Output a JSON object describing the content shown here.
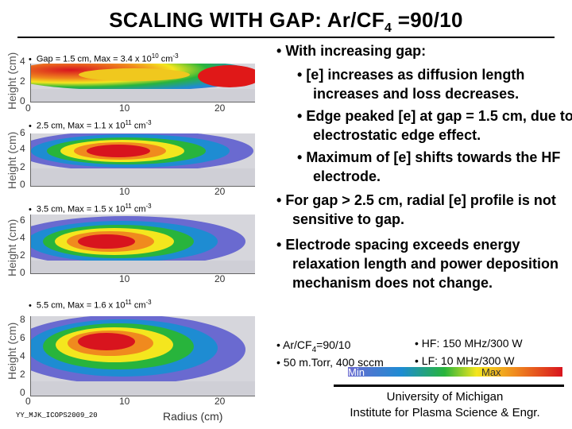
{
  "title": {
    "main": "SCALING WITH GAP: Ar/CF",
    "sub": "4",
    "tail": " =90/10"
  },
  "panels": [
    {
      "label": "Gap = 1.5 cm, Max = 3.4 x 10",
      "exp": "10",
      "unit": " cm",
      "unit_exp": "-3",
      "yticks": [
        "4",
        "2",
        "0"
      ],
      "xticks": [
        "10",
        "20"
      ]
    },
    {
      "label": "2.5 cm, Max = 1.1 x 10",
      "exp": "11",
      "unit": " cm",
      "unit_exp": "-3",
      "yticks": [
        "6",
        "4",
        "2",
        "0"
      ],
      "xticks": [
        "10",
        "20"
      ]
    },
    {
      "label": "3.5 cm, Max = 1.5 x 10",
      "exp": "11",
      "unit": " cm",
      "unit_exp": "-3",
      "yticks": [
        "6",
        "4",
        "2",
        "0"
      ],
      "xticks": [
        "10",
        "20"
      ]
    },
    {
      "label": "5.5 cm, Max = 1.6 x 10",
      "exp": "11",
      "unit": " cm",
      "unit_exp": "-3",
      "yticks": [
        "8",
        "6",
        "4",
        "2",
        "0"
      ],
      "xticks": [
        "0",
        "10",
        "20"
      ]
    }
  ],
  "axes": {
    "ylabel": "Height (cm)",
    "xlabel": "Radius (cm)"
  },
  "bullets": [
    {
      "level": 0,
      "text": "With increasing gap:"
    },
    {
      "level": 1,
      "text": "[e] increases as diffusion length increases and loss decreases."
    },
    {
      "level": 1,
      "text": "Edge peaked [e] at gap = 1.5 cm, due to electrostatic edge effect."
    },
    {
      "level": 1,
      "text": "Maximum of [e] shifts towards the HF electrode."
    },
    {
      "level": 0,
      "text": "For gap > 2.5 cm, radial [e] profile is not sensitive to gap."
    },
    {
      "level": 0,
      "text": "Electrode spacing exceeds energy relaxation length and power deposition mechanism does not change."
    }
  ],
  "conditions": {
    "gas_a": "Ar/CF",
    "gas_sub": "4",
    "gas_b": "=90/10",
    "pressure": "50 m.Torr, 400 sccm",
    "hf": "HF: 150 MHz/300 W",
    "lf": "LF: 10 MHz/300 W"
  },
  "colorbar": {
    "min": "Min",
    "max": "Max"
  },
  "footer": {
    "line1": "University of Michigan",
    "line2": "Institute for Plasma Science & Engr.",
    "credit": "YY_MJK_ICOPS2009_20"
  }
}
